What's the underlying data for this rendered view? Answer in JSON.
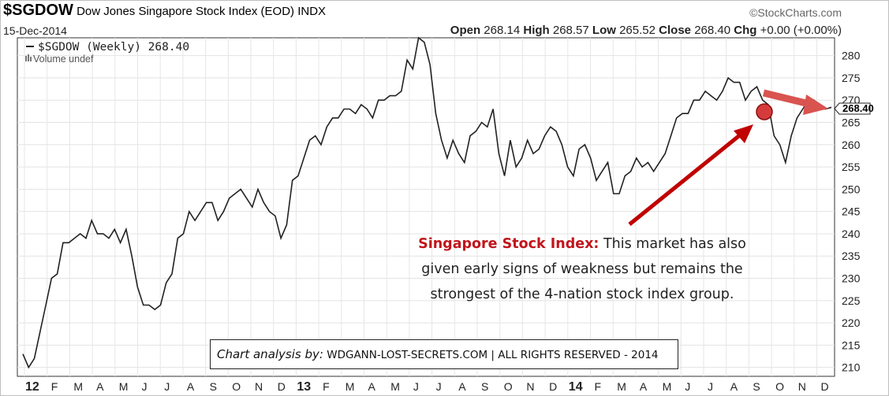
{
  "header": {
    "symbol": "$SGDOW",
    "name": "Dow Jones Singapore Stock Index (EOD)",
    "exchange": "INDX",
    "brand": "©StockCharts.com",
    "date": "15-Dec-2014",
    "open_label": "Open",
    "open": "268.14",
    "high_label": "High",
    "high": "268.57",
    "low_label": "Low",
    "low": "265.52",
    "close_label": "Close",
    "close": "268.40",
    "chg_label": "Chg",
    "chg": "+0.00 (+0.00%)"
  },
  "legend": {
    "series": "$SGDOW (Weekly) 268.40",
    "volume": "Volume undef"
  },
  "annotation": {
    "highlight": "Singapore Stock Index:",
    "line1": " This market has also",
    "line2": "given early signs of weakness but remains the",
    "line3": "strongest of the 4-nation stock index group."
  },
  "credit": {
    "by": "Chart analysis by:",
    "text": " WDGANN-LOST-SECRETS.COM | ALL RIGHTS RESERVED - 2014"
  },
  "colors": {
    "line": "#222222",
    "arrow": "#c00000",
    "arrow_light": "#d9534f",
    "marker": "#d63b3b"
  },
  "chart_data": {
    "type": "line",
    "series": [
      {
        "name": "$SGDOW (Weekly)",
        "values": [
          213,
          210,
          212,
          218,
          224,
          230,
          231,
          238,
          238,
          239,
          240,
          239,
          243,
          240,
          240,
          239,
          241,
          238,
          241,
          235,
          228,
          224,
          224,
          223,
          224,
          229,
          231,
          239,
          240,
          245,
          243,
          245,
          247,
          247,
          243,
          245,
          248,
          249,
          250,
          248,
          246,
          250,
          247,
          245,
          244,
          239,
          242,
          252,
          253,
          257,
          261,
          262,
          260,
          264,
          266,
          266,
          268,
          268,
          267,
          269,
          268,
          266,
          270,
          270,
          271,
          271,
          272,
          279,
          277,
          284,
          283,
          278,
          267,
          261,
          257,
          261,
          258,
          256,
          262,
          263,
          265,
          264,
          268,
          258,
          253,
          261,
          255,
          257,
          261,
          258,
          259,
          262,
          264,
          263,
          260,
          255,
          253,
          259,
          260,
          257,
          252,
          254,
          256,
          249,
          249,
          253,
          254,
          257,
          255,
          256,
          254,
          256,
          258,
          262,
          266,
          267,
          267,
          270,
          270,
          272,
          271,
          270,
          272,
          275,
          274,
          274,
          270,
          272,
          273,
          270,
          269,
          262,
          260,
          256,
          262,
          266,
          268,
          270,
          270,
          268,
          268,
          268.4
        ]
      }
    ],
    "x_tick_labels": [
      "12",
      "F",
      "M",
      "A",
      "M",
      "J",
      "J",
      "A",
      "S",
      "O",
      "N",
      "D",
      "13",
      "F",
      "M",
      "A",
      "M",
      "J",
      "J",
      "A",
      "S",
      "O",
      "N",
      "D",
      "14",
      "F",
      "M",
      "A",
      "M",
      "J",
      "J",
      "A",
      "S",
      "O",
      "N",
      "D"
    ],
    "x_tick_bold": [
      "12",
      "13",
      "14"
    ],
    "y_ticks": [
      210,
      215,
      220,
      225,
      230,
      235,
      240,
      245,
      250,
      255,
      260,
      265,
      270,
      275,
      280
    ],
    "ylim": [
      208,
      284
    ],
    "last_value_label": "268.40",
    "grid": true
  }
}
